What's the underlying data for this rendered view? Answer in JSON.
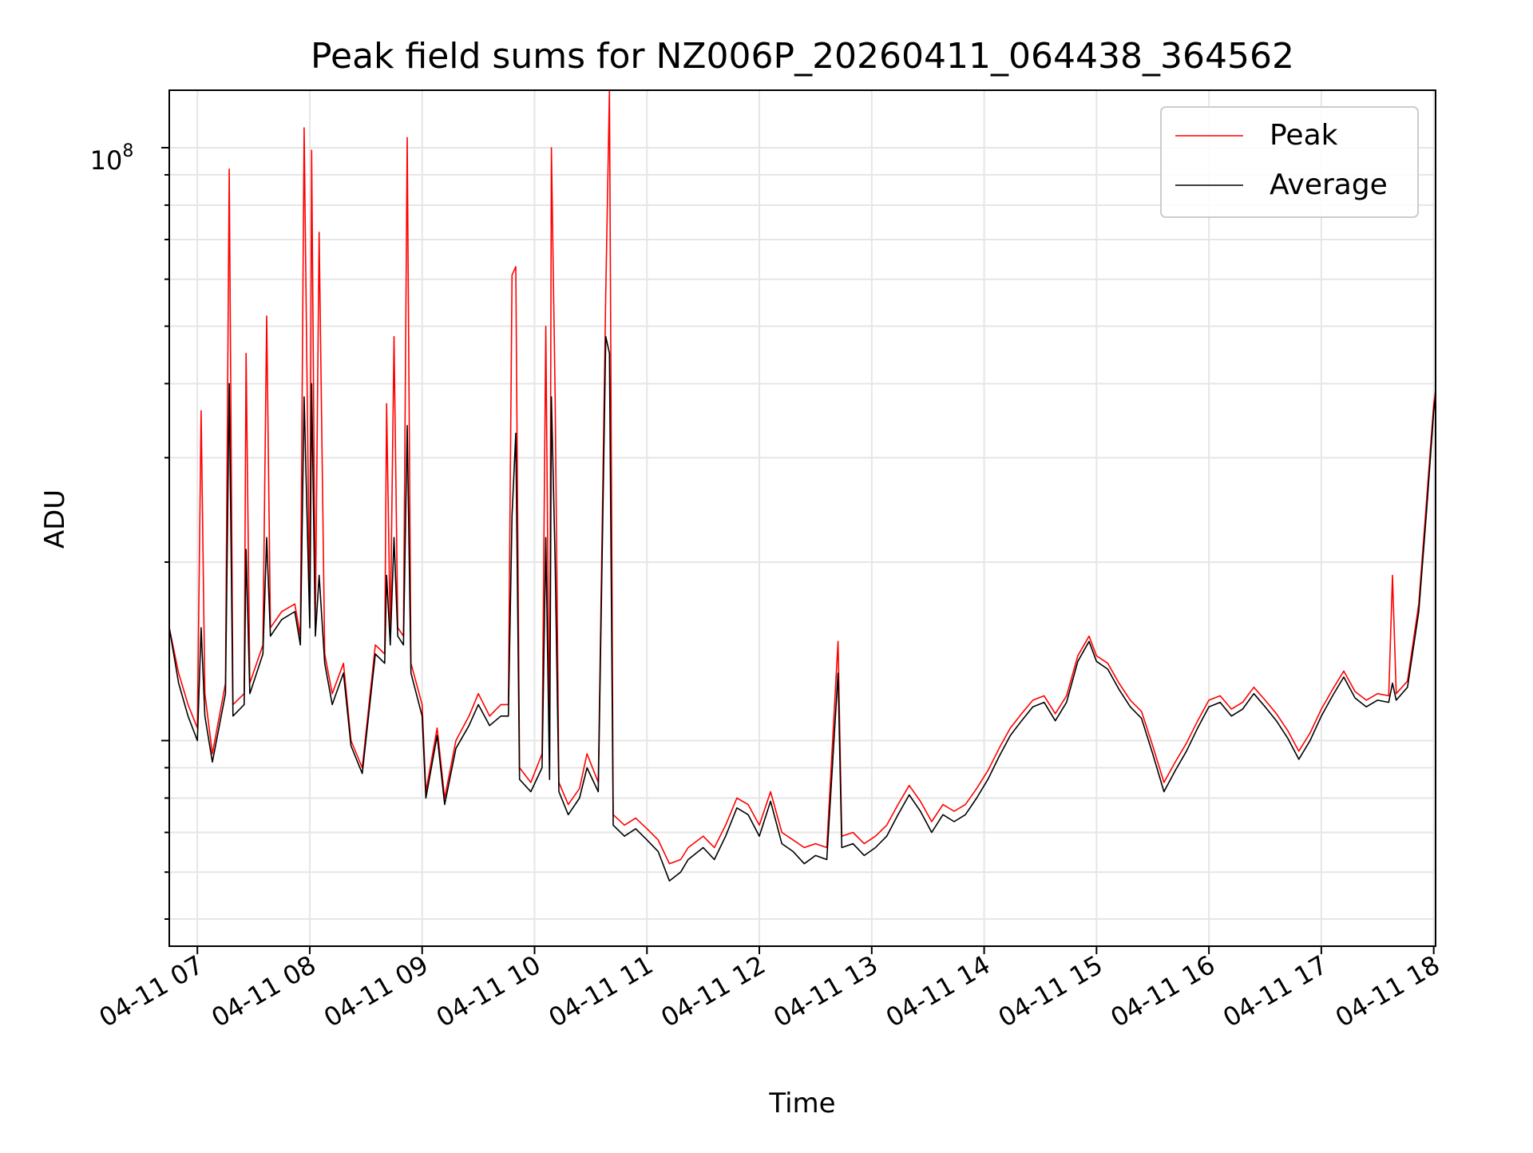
{
  "chart_data": {
    "type": "line",
    "title": "Peak field sums for NZ006P_20260411_064438_364562",
    "xlabel": "Time",
    "ylabel": "ADU",
    "yscale": "log",
    "ylim": [
      4500000,
      125000000
    ],
    "xlim": [
      "04-11 06:45",
      "04-11 18:01"
    ],
    "grid": true,
    "legend": "upper right",
    "x_ticks": [
      "04-11 07",
      "04-11 08",
      "04-11 09",
      "04-11 10",
      "04-11 11",
      "04-11 12",
      "04-11 13",
      "04-11 14",
      "04-11 15",
      "04-11 16",
      "04-11 17",
      "04-11 18"
    ],
    "y_tick_label": {
      "base": "10",
      "exponent": "8",
      "value": 100000000
    },
    "colors": {
      "peak": "#ff0000",
      "average": "#000000",
      "grid": "#e6e6e6"
    },
    "series": [
      {
        "name": "Peak",
        "color": "#ff0000",
        "points": [
          [
            "06:45",
            15500000
          ],
          [
            "06:50",
            13000000
          ],
          [
            "06:55",
            11500000
          ],
          [
            "07:00",
            10500000
          ],
          [
            "07:02",
            36000000
          ],
          [
            "07:04",
            12000000
          ],
          [
            "07:08",
            9500000
          ],
          [
            "07:15",
            12500000
          ],
          [
            "07:17",
            92000000
          ],
          [
            "07:19",
            11500000
          ],
          [
            "07:25",
            12000000
          ],
          [
            "07:26",
            45000000
          ],
          [
            "07:28",
            12500000
          ],
          [
            "07:35",
            14500000
          ],
          [
            "07:37",
            52000000
          ],
          [
            "07:39",
            15500000
          ],
          [
            "07:45",
            16500000
          ],
          [
            "07:52",
            17000000
          ],
          [
            "07:55",
            15000000
          ],
          [
            "07:57",
            108000000
          ],
          [
            "08:00",
            16000000
          ],
          [
            "08:01",
            99000000
          ],
          [
            "08:03",
            16000000
          ],
          [
            "08:05",
            72000000
          ],
          [
            "08:08",
            14000000
          ],
          [
            "08:12",
            12000000
          ],
          [
            "08:18",
            13500000
          ],
          [
            "08:22",
            10000000
          ],
          [
            "08:28",
            9000000
          ],
          [
            "08:35",
            14500000
          ],
          [
            "08:40",
            14000000
          ],
          [
            "08:41",
            37000000
          ],
          [
            "08:43",
            15000000
          ],
          [
            "08:45",
            48000000
          ],
          [
            "08:47",
            15500000
          ],
          [
            "08:50",
            15000000
          ],
          [
            "08:52",
            104000000
          ],
          [
            "08:54",
            13500000
          ],
          [
            "09:00",
            11500000
          ],
          [
            "09:02",
            8200000
          ],
          [
            "09:08",
            10500000
          ],
          [
            "09:12",
            8000000
          ],
          [
            "09:18",
            10000000
          ],
          [
            "09:25",
            11000000
          ],
          [
            "09:30",
            12000000
          ],
          [
            "09:36",
            11000000
          ],
          [
            "09:42",
            11500000
          ],
          [
            "09:46",
            11500000
          ],
          [
            "09:48",
            61000000
          ],
          [
            "09:50",
            63000000
          ],
          [
            "09:52",
            9000000
          ],
          [
            "09:58",
            8500000
          ],
          [
            "10:04",
            9500000
          ],
          [
            "10:06",
            50000000
          ],
          [
            "10:08",
            9000000
          ],
          [
            "10:09",
            100000000
          ],
          [
            "10:11",
            38000000
          ],
          [
            "10:13",
            8500000
          ],
          [
            "10:18",
            7800000
          ],
          [
            "10:24",
            8300000
          ],
          [
            "10:28",
            9500000
          ],
          [
            "10:34",
            8500000
          ],
          [
            "10:38",
            57000000
          ],
          [
            "10:40",
            125000000
          ],
          [
            "10:42",
            7500000
          ],
          [
            "10:48",
            7200000
          ],
          [
            "10:54",
            7400000
          ],
          [
            "11:00",
            7100000
          ],
          [
            "11:06",
            6800000
          ],
          [
            "11:12",
            6200000
          ],
          [
            "11:18",
            6300000
          ],
          [
            "11:22",
            6600000
          ],
          [
            "11:30",
            6900000
          ],
          [
            "11:36",
            6600000
          ],
          [
            "11:42",
            7200000
          ],
          [
            "11:48",
            8000000
          ],
          [
            "11:54",
            7800000
          ],
          [
            "12:00",
            7200000
          ],
          [
            "12:06",
            8200000
          ],
          [
            "12:12",
            7000000
          ],
          [
            "12:18",
            6800000
          ],
          [
            "12:24",
            6600000
          ],
          [
            "12:30",
            6700000
          ],
          [
            "12:36",
            6600000
          ],
          [
            "12:42",
            14700000
          ],
          [
            "12:44",
            6900000
          ],
          [
            "12:50",
            7000000
          ],
          [
            "12:56",
            6700000
          ],
          [
            "13:02",
            6900000
          ],
          [
            "13:08",
            7200000
          ],
          [
            "13:14",
            7800000
          ],
          [
            "13:20",
            8400000
          ],
          [
            "13:26",
            7900000
          ],
          [
            "13:32",
            7300000
          ],
          [
            "13:38",
            7800000
          ],
          [
            "13:44",
            7600000
          ],
          [
            "13:50",
            7800000
          ],
          [
            "13:56",
            8300000
          ],
          [
            "14:02",
            8900000
          ],
          [
            "14:08",
            9700000
          ],
          [
            "14:14",
            10500000
          ],
          [
            "14:20",
            11100000
          ],
          [
            "14:26",
            11700000
          ],
          [
            "14:32",
            11900000
          ],
          [
            "14:38",
            11100000
          ],
          [
            "14:44",
            11900000
          ],
          [
            "14:50",
            13900000
          ],
          [
            "14:56",
            15000000
          ],
          [
            "15:00",
            13900000
          ],
          [
            "15:06",
            13500000
          ],
          [
            "15:12",
            12500000
          ],
          [
            "15:18",
            11700000
          ],
          [
            "15:24",
            11200000
          ],
          [
            "15:30",
            9800000
          ],
          [
            "15:36",
            8500000
          ],
          [
            "15:42",
            9200000
          ],
          [
            "15:48",
            9900000
          ],
          [
            "15:54",
            10800000
          ],
          [
            "16:00",
            11700000
          ],
          [
            "16:06",
            11900000
          ],
          [
            "16:12",
            11300000
          ],
          [
            "16:18",
            11600000
          ],
          [
            "16:24",
            12300000
          ],
          [
            "16:30",
            11700000
          ],
          [
            "16:36",
            11100000
          ],
          [
            "16:42",
            10400000
          ],
          [
            "16:48",
            9600000
          ],
          [
            "16:54",
            10300000
          ],
          [
            "17:00",
            11300000
          ],
          [
            "17:06",
            12200000
          ],
          [
            "17:12",
            13100000
          ],
          [
            "17:18",
            12100000
          ],
          [
            "17:24",
            11700000
          ],
          [
            "17:30",
            12000000
          ],
          [
            "17:36",
            11900000
          ],
          [
            "17:38",
            19000000
          ],
          [
            "17:40",
            12000000
          ],
          [
            "17:46",
            12600000
          ],
          [
            "17:52",
            17000000
          ],
          [
            "17:56",
            25000000
          ],
          [
            "18:00",
            37000000
          ],
          [
            "18:01",
            39000000
          ]
        ]
      },
      {
        "name": "Average",
        "color": "#000000",
        "points": [
          [
            "06:45",
            15500000
          ],
          [
            "06:50",
            12500000
          ],
          [
            "06:55",
            11000000
          ],
          [
            "07:00",
            10000000
          ],
          [
            "07:02",
            15500000
          ],
          [
            "07:04",
            11000000
          ],
          [
            "07:08",
            9200000
          ],
          [
            "07:15",
            12000000
          ],
          [
            "07:17",
            40000000
          ],
          [
            "07:19",
            11000000
          ],
          [
            "07:25",
            11500000
          ],
          [
            "07:26",
            21000000
          ],
          [
            "07:28",
            12000000
          ],
          [
            "07:35",
            14000000
          ],
          [
            "07:37",
            22000000
          ],
          [
            "07:39",
            15000000
          ],
          [
            "07:45",
            16000000
          ],
          [
            "07:52",
            16500000
          ],
          [
            "07:55",
            14500000
          ],
          [
            "07:57",
            38000000
          ],
          [
            "08:00",
            15500000
          ],
          [
            "08:01",
            40000000
          ],
          [
            "08:03",
            15000000
          ],
          [
            "08:05",
            19000000
          ],
          [
            "08:08",
            13500000
          ],
          [
            "08:12",
            11500000
          ],
          [
            "08:18",
            13000000
          ],
          [
            "08:22",
            9800000
          ],
          [
            "08:28",
            8800000
          ],
          [
            "08:35",
            14000000
          ],
          [
            "08:40",
            13500000
          ],
          [
            "08:41",
            19000000
          ],
          [
            "08:43",
            14500000
          ],
          [
            "08:45",
            22000000
          ],
          [
            "08:47",
            15000000
          ],
          [
            "08:50",
            14500000
          ],
          [
            "08:52",
            34000000
          ],
          [
            "08:54",
            13000000
          ],
          [
            "09:00",
            11000000
          ],
          [
            "09:02",
            8000000
          ],
          [
            "09:08",
            10200000
          ],
          [
            "09:12",
            7800000
          ],
          [
            "09:18",
            9700000
          ],
          [
            "09:25",
            10600000
          ],
          [
            "09:30",
            11500000
          ],
          [
            "09:36",
            10600000
          ],
          [
            "09:42",
            11000000
          ],
          [
            "09:46",
            11000000
          ],
          [
            "09:48",
            24000000
          ],
          [
            "09:50",
            33000000
          ],
          [
            "09:52",
            8600000
          ],
          [
            "09:58",
            8200000
          ],
          [
            "10:04",
            9000000
          ],
          [
            "10:06",
            22000000
          ],
          [
            "10:08",
            8600000
          ],
          [
            "10:09",
            38000000
          ],
          [
            "10:11",
            20000000
          ],
          [
            "10:13",
            8200000
          ],
          [
            "10:18",
            7500000
          ],
          [
            "10:24",
            8000000
          ],
          [
            "10:28",
            9000000
          ],
          [
            "10:34",
            8200000
          ],
          [
            "10:38",
            48000000
          ],
          [
            "10:40",
            45000000
          ],
          [
            "10:42",
            7200000
          ],
          [
            "10:48",
            6900000
          ],
          [
            "10:54",
            7100000
          ],
          [
            "11:00",
            6800000
          ],
          [
            "11:06",
            6500000
          ],
          [
            "11:12",
            5800000
          ],
          [
            "11:18",
            6000000
          ],
          [
            "11:22",
            6300000
          ],
          [
            "11:30",
            6600000
          ],
          [
            "11:36",
            6300000
          ],
          [
            "11:42",
            6900000
          ],
          [
            "11:48",
            7700000
          ],
          [
            "11:54",
            7500000
          ],
          [
            "12:00",
            6900000
          ],
          [
            "12:06",
            7900000
          ],
          [
            "12:12",
            6700000
          ],
          [
            "12:18",
            6500000
          ],
          [
            "12:24",
            6200000
          ],
          [
            "12:30",
            6400000
          ],
          [
            "12:36",
            6300000
          ],
          [
            "12:42",
            13000000
          ],
          [
            "12:44",
            6600000
          ],
          [
            "12:50",
            6700000
          ],
          [
            "12:56",
            6400000
          ],
          [
            "13:02",
            6600000
          ],
          [
            "13:08",
            6900000
          ],
          [
            "13:14",
            7500000
          ],
          [
            "13:20",
            8100000
          ],
          [
            "13:26",
            7600000
          ],
          [
            "13:32",
            7000000
          ],
          [
            "13:38",
            7500000
          ],
          [
            "13:44",
            7300000
          ],
          [
            "13:50",
            7500000
          ],
          [
            "13:56",
            8000000
          ],
          [
            "14:02",
            8600000
          ],
          [
            "14:08",
            9400000
          ],
          [
            "14:14",
            10200000
          ],
          [
            "14:20",
            10800000
          ],
          [
            "14:26",
            11400000
          ],
          [
            "14:32",
            11600000
          ],
          [
            "14:38",
            10800000
          ],
          [
            "14:44",
            11600000
          ],
          [
            "14:50",
            13600000
          ],
          [
            "14:56",
            14700000
          ],
          [
            "15:00",
            13600000
          ],
          [
            "15:06",
            13200000
          ],
          [
            "15:12",
            12200000
          ],
          [
            "15:18",
            11400000
          ],
          [
            "15:24",
            10900000
          ],
          [
            "15:30",
            9500000
          ],
          [
            "15:36",
            8200000
          ],
          [
            "15:42",
            8900000
          ],
          [
            "15:48",
            9600000
          ],
          [
            "15:54",
            10500000
          ],
          [
            "16:00",
            11400000
          ],
          [
            "16:06",
            11600000
          ],
          [
            "16:12",
            11000000
          ],
          [
            "16:18",
            11300000
          ],
          [
            "16:24",
            12000000
          ],
          [
            "16:30",
            11400000
          ],
          [
            "16:36",
            10800000
          ],
          [
            "16:42",
            10100000
          ],
          [
            "16:48",
            9300000
          ],
          [
            "16:54",
            10000000
          ],
          [
            "17:00",
            11000000
          ],
          [
            "17:06",
            11900000
          ],
          [
            "17:12",
            12800000
          ],
          [
            "17:18",
            11800000
          ],
          [
            "17:24",
            11400000
          ],
          [
            "17:30",
            11700000
          ],
          [
            "17:36",
            11600000
          ],
          [
            "17:38",
            12500000
          ],
          [
            "17:40",
            11700000
          ],
          [
            "17:46",
            12300000
          ],
          [
            "17:52",
            16500000
          ],
          [
            "17:56",
            24000000
          ],
          [
            "18:00",
            36000000
          ],
          [
            "18:01",
            38000000
          ]
        ]
      }
    ]
  }
}
